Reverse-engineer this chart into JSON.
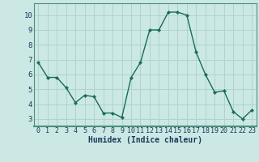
{
  "x": [
    0,
    1,
    2,
    3,
    4,
    5,
    6,
    7,
    8,
    9,
    10,
    11,
    12,
    13,
    14,
    15,
    16,
    17,
    18,
    19,
    20,
    21,
    22,
    23
  ],
  "y": [
    6.8,
    5.8,
    5.8,
    5.1,
    4.1,
    4.6,
    4.5,
    3.4,
    3.4,
    3.1,
    5.8,
    6.8,
    9.0,
    9.0,
    10.2,
    10.2,
    10.0,
    7.5,
    6.0,
    4.8,
    4.9,
    3.5,
    3.0,
    3.6
  ],
  "xlabel": "Humidex (Indice chaleur)",
  "ylim": [
    2.5,
    10.8
  ],
  "xlim": [
    -0.5,
    23.5
  ],
  "yticks": [
    3,
    4,
    5,
    6,
    7,
    8,
    9,
    10
  ],
  "xticks": [
    0,
    1,
    2,
    3,
    4,
    5,
    6,
    7,
    8,
    9,
    10,
    11,
    12,
    13,
    14,
    15,
    16,
    17,
    18,
    19,
    20,
    21,
    22,
    23
  ],
  "line_color": "#1a6b5a",
  "marker_color": "#1a6b5a",
  "bg_color": "#cce8e4",
  "grid_color": "#aed4cf",
  "axis_bg": "#cce8e4",
  "border_color": "#4a9080",
  "xlabel_color": "#1a3a5a",
  "tick_label_color": "#1a3a5a",
  "tick_fontsize": 6.0,
  "xlabel_fontsize": 7.0
}
